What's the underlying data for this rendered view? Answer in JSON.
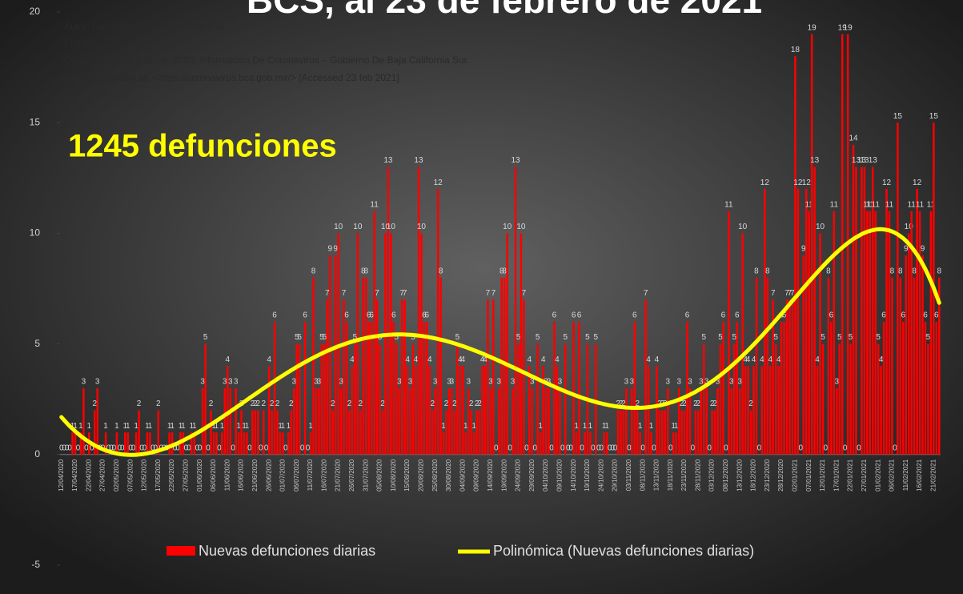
{
  "chart_data": {
    "type": "bar",
    "title": "BCS, al 23 de febrero de 2021",
    "annotations": [
      "Autor: Luis Eduardo Chávez Gamboa",
      "Fuente:",
      "Coronavirus.bcs.gob.mx. 2020. Información De Coronavirus – Gobierno De Baja California Sur.",
      "[online] Available at: <https://coronavirus.bcs.gob.mx/> [Accessed 23 feb 2021]"
    ],
    "highlight": "1245 defunciones",
    "ylim": [
      -5,
      20
    ],
    "yticks": [
      -5,
      0,
      5,
      10,
      15,
      20
    ],
    "trendline": {
      "name": "Polinómica (Nuevas defunciones diarias)",
      "color": "#ffff00"
    },
    "categories": [
      "12/04/2020",
      null,
      null,
      null,
      null,
      "17/04/2020",
      null,
      null,
      null,
      null,
      "22/04/2020",
      null,
      null,
      null,
      null,
      "27/04/2020",
      null,
      null,
      null,
      null,
      "02/05/2020",
      null,
      null,
      null,
      null,
      "07/05/2020",
      null,
      null,
      null,
      null,
      "12/05/2020",
      null,
      null,
      null,
      null,
      "17/05/2020",
      null,
      null,
      null,
      null,
      "22/05/2020",
      null,
      null,
      null,
      null,
      "27/05/2020",
      null,
      null,
      null,
      null,
      "01/06/2020",
      null,
      null,
      null,
      null,
      "06/06/2020",
      null,
      null,
      null,
      null,
      "11/06/2020",
      null,
      null,
      null,
      null,
      "16/06/2020",
      null,
      null,
      null,
      null,
      "21/06/2020",
      null,
      null,
      null,
      null,
      "26/06/2020",
      null,
      null,
      null,
      null,
      "01/07/2020",
      null,
      null,
      null,
      null,
      "06/07/2020",
      null,
      null,
      null,
      null,
      "11/07/2020",
      null,
      null,
      null,
      null,
      "16/07/2020",
      null,
      null,
      null,
      null,
      "21/07/2020",
      null,
      null,
      null,
      null,
      "26/07/2020",
      null,
      null,
      null,
      null,
      "31/07/2020",
      null,
      null,
      null,
      null,
      "05/08/2020",
      null,
      null,
      null,
      null,
      "10/08/2020",
      null,
      null,
      null,
      null,
      "15/08/2020",
      null,
      null,
      null,
      null,
      "20/08/2020",
      null,
      null,
      null,
      null,
      "25/08/2020",
      null,
      null,
      null,
      null,
      "30/08/2020",
      null,
      null,
      null,
      null,
      "04/09/2020",
      null,
      null,
      null,
      null,
      "09/09/2020",
      null,
      null,
      null,
      null,
      "14/09/2020",
      null,
      null,
      null,
      null,
      "19/09/2020",
      null,
      null,
      null,
      null,
      "24/09/2020",
      null,
      null,
      null,
      null,
      "29/09/2020",
      null,
      null,
      null,
      null,
      "04/10/2020",
      null,
      null,
      null,
      null,
      "09/10/2020",
      null,
      null,
      null,
      null,
      "14/10/2020",
      null,
      null,
      null,
      null,
      "19/10/2020",
      null,
      null,
      null,
      null,
      "24/10/2020",
      null,
      null,
      null,
      null,
      "29/10/2020",
      null,
      null,
      null,
      null,
      "03/11/2020",
      null,
      null,
      null,
      null,
      "08/11/2020",
      null,
      null,
      null,
      null,
      "13/11/2020",
      null,
      null,
      null,
      null,
      "18/11/2020",
      null,
      null,
      null,
      null,
      "23/11/2020",
      null,
      null,
      null,
      null,
      "28/11/2020",
      null,
      null,
      null,
      null,
      "03/12/2020",
      null,
      null,
      null,
      null,
      "08/12/2020",
      null,
      null,
      null,
      null,
      "13/12/2020",
      null,
      null,
      null,
      null,
      "18/12/2020",
      null,
      null,
      null,
      null,
      "23/12/2020",
      null,
      null,
      null,
      null,
      "28/12/2020",
      null,
      null,
      null,
      null,
      "02/01/2021",
      null,
      null,
      null,
      null,
      "07/01/2021",
      null,
      null,
      null,
      null,
      "12/01/2021",
      null,
      null,
      null,
      null,
      "17/01/2021",
      null,
      null,
      null,
      null,
      "22/01/2021",
      null,
      null,
      null,
      null,
      "27/01/2021",
      null,
      null,
      null,
      null,
      "01/02/2021",
      null,
      null,
      null,
      null,
      "06/02/2021",
      null,
      null,
      null,
      null,
      "11/02/2021",
      null,
      null,
      null,
      null,
      "16/02/2021",
      null,
      null,
      null,
      null,
      "21/02/2021",
      null,
      null
    ],
    "series": [
      {
        "name": "Nuevas defunciones diarias",
        "color": "#ff0000",
        "values": [
          0,
          0,
          0,
          0,
          1,
          1,
          0,
          1,
          3,
          0,
          1,
          0,
          2,
          3,
          0,
          0,
          1,
          0,
          0,
          0,
          1,
          0,
          0,
          1,
          1,
          0,
          0,
          1,
          2,
          0,
          0,
          1,
          1,
          0,
          0,
          2,
          0,
          0,
          0,
          1,
          1,
          0,
          0,
          1,
          1,
          0,
          0,
          1,
          1,
          0,
          0,
          3,
          5,
          0,
          2,
          1,
          1,
          0,
          1,
          3,
          4,
          3,
          0,
          3,
          1,
          2,
          1,
          1,
          0,
          2,
          2,
          2,
          0,
          2,
          0,
          4,
          2,
          6,
          2,
          1,
          1,
          0,
          1,
          2,
          3,
          5,
          5,
          0,
          6,
          0,
          1,
          8,
          3,
          3,
          5,
          5,
          7,
          9,
          2,
          9,
          10,
          3,
          7,
          6,
          2,
          4,
          5,
          10,
          2,
          8,
          8,
          6,
          6,
          11,
          7,
          5,
          2,
          10,
          13,
          10,
          6,
          5,
          3,
          7,
          7,
          4,
          3,
          5,
          4,
          13,
          10,
          6,
          6,
          4,
          2,
          3,
          12,
          8,
          1,
          2,
          3,
          3,
          2,
          5,
          4,
          4,
          1,
          3,
          2,
          1,
          2,
          2,
          4,
          4,
          7,
          3,
          7,
          0,
          3,
          8,
          8,
          10,
          0,
          3,
          13,
          5,
          10,
          7,
          0,
          4,
          3,
          0,
          5,
          1,
          4,
          3,
          3,
          0,
          6,
          4,
          3,
          0,
          5,
          0,
          0,
          6,
          1,
          6,
          0,
          1,
          5,
          1,
          0,
          5,
          0,
          0,
          1,
          1,
          0,
          0,
          0,
          2,
          2,
          2,
          3,
          0,
          3,
          6,
          2,
          1,
          0,
          7,
          4,
          1,
          0,
          4,
          2,
          2,
          2,
          3,
          0,
          1,
          1,
          3,
          2,
          2,
          6,
          3,
          0,
          2,
          2,
          3,
          5,
          3,
          0,
          2,
          2,
          3,
          5,
          6,
          0,
          11,
          3,
          5,
          6,
          3,
          10,
          4,
          4,
          2,
          4,
          8,
          0,
          4,
          12,
          8,
          4,
          7,
          5,
          4,
          6,
          6,
          7,
          7,
          7,
          18,
          12,
          0,
          9,
          12,
          11,
          19,
          13,
          4,
          10,
          5,
          0,
          8,
          6,
          11,
          3,
          5,
          19,
          0,
          19,
          5,
          14,
          13,
          0,
          13,
          13,
          11,
          11,
          13,
          11,
          5,
          4,
          6,
          12,
          11,
          8,
          0,
          15,
          8,
          6,
          9,
          10,
          11,
          8,
          12,
          11,
          9,
          6,
          5,
          11,
          15,
          6,
          8
        ]
      }
    ]
  }
}
